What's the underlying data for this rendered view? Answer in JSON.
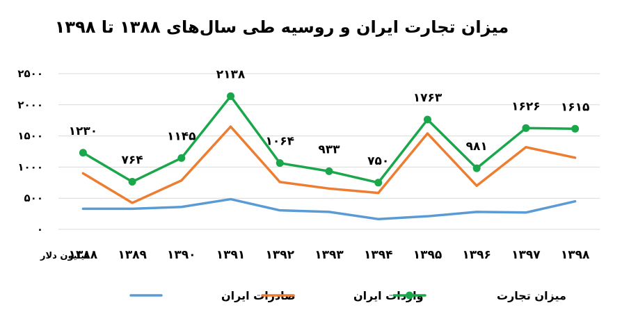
{
  "chart_data": {
    "type": "line",
    "title": "میزان تجارت ایران و روسیه طی سال‌های ۱۳۸۸ تا ۱۳۹۸",
    "ylabel": "میلیون دلار",
    "xlabel": "",
    "categories": [
      "۱۳۸۸",
      "۱۳۸۹",
      "۱۳۹۰",
      "۱۳۹۱",
      "۱۳۹۲",
      "۱۳۹۳",
      "۱۳۹۴",
      "۱۳۹۵",
      "۱۳۹۶",
      "۱۳۹۷",
      "۱۳۹۸"
    ],
    "y_ticks": [
      "۰",
      "۵۰۰",
      "۱۰۰۰",
      "۱۵۰۰",
      "۲۰۰۰",
      "۲۵۰۰"
    ],
    "ylim": [
      0,
      2500
    ],
    "grid": true,
    "legend_position": "bottom",
    "series": [
      {
        "name": "صادرات ایران",
        "color": "#5b9bd5",
        "marker": false,
        "values": [
          330,
          330,
          360,
          485,
          305,
          280,
          165,
          210,
          280,
          270,
          450
        ]
      },
      {
        "name": "واردات ایران",
        "color": "#ed7d31",
        "marker": false,
        "values": [
          900,
          425,
          785,
          1650,
          760,
          655,
          585,
          1540,
          700,
          1320,
          1150
        ]
      },
      {
        "name": "میزان تجارت",
        "color": "#1aa64a",
        "marker": true,
        "values": [
          1230,
          764,
          1145,
          2138,
          1064,
          933,
          750,
          1763,
          981,
          1626,
          1615
        ],
        "labels": [
          "۱۲۳۰",
          "۷۶۴",
          "۱۱۴۵",
          "۲۱۳۸",
          "۱۰۶۴",
          "۹۳۳",
          "۷۵۰",
          "۱۷۶۳",
          "۹۸۱",
          "۱۶۲۶",
          "۱۶۱۵"
        ]
      }
    ]
  }
}
